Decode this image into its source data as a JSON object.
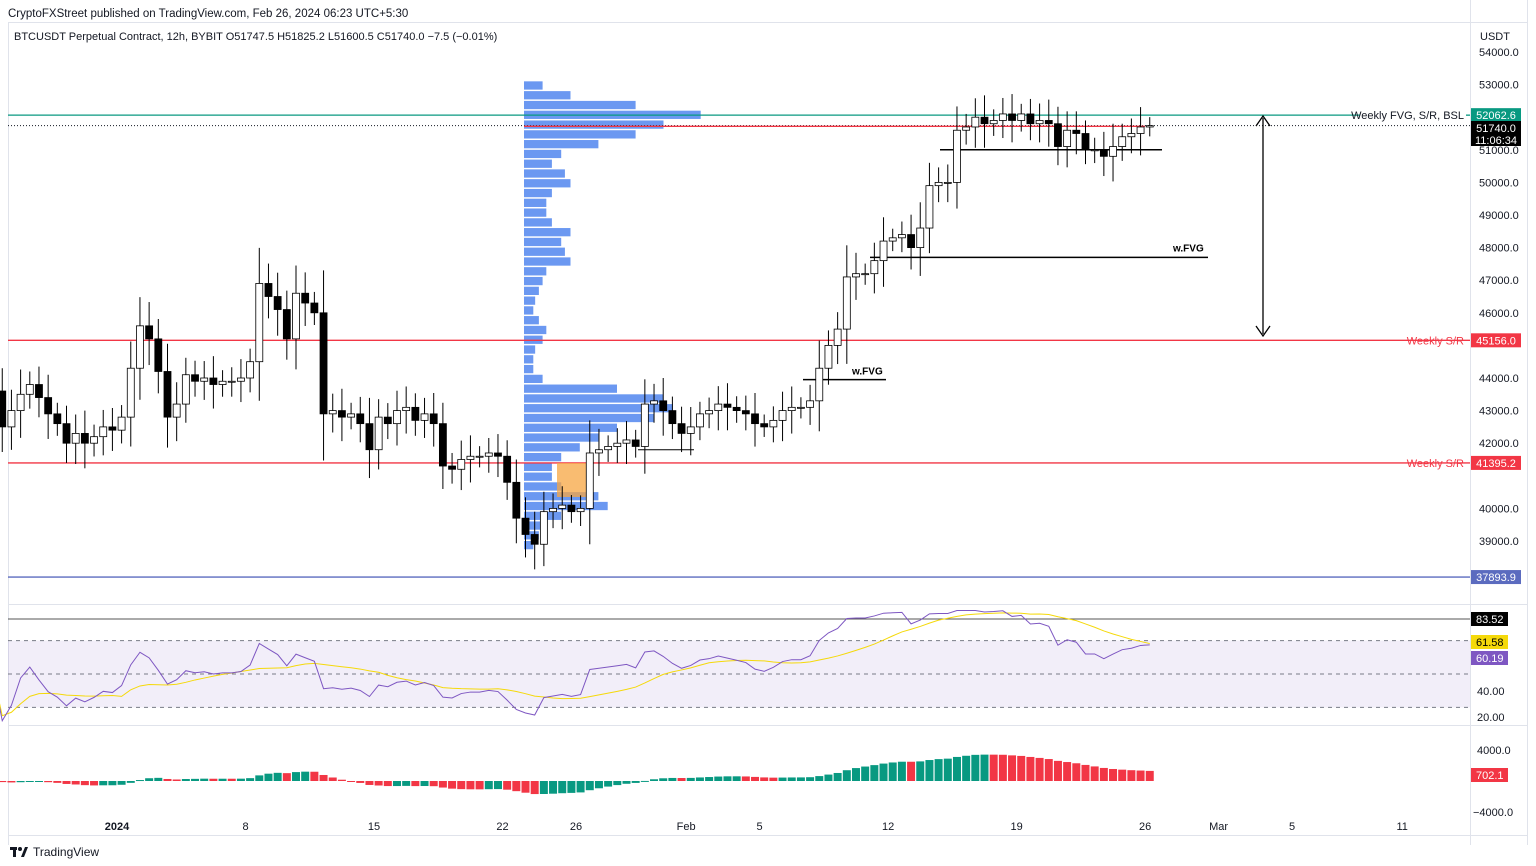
{
  "header": {
    "published": "CryptoFXStreet published on TradingView.com, Feb 26, 2024 06:23 UTC+5:30",
    "symbol_line": "BTCUSDT Perpetual Contract, 12h, BYBIT  O51747.5  H51825.2  L51600.5  C51740.0  −7.5 (−0.01%)"
  },
  "price_unit": "USDT",
  "footer": {
    "brand": "TradingView"
  },
  "chart_data": {
    "type": "candlestick",
    "interval": "12h",
    "first_day": "2023-12-25",
    "closes": [
      43.6,
      42.5,
      43.0,
      43.5,
      43.8,
      43.4,
      42.9,
      42.6,
      42.0,
      42.3,
      42.0,
      42.2,
      42.5,
      42.4,
      42.8,
      44.3,
      45.6,
      45.2,
      44.2,
      42.8,
      43.2,
      44.1,
      43.9,
      44.0,
      43.8,
      43.9,
      43.9,
      44.0,
      44.5,
      46.9,
      46.5,
      46.1,
      45.2,
      46.6,
      46.3,
      46.0,
      42.9,
      43.0,
      42.8,
      42.9,
      42.6,
      41.8,
      42.8,
      42.6,
      43.0,
      43.1,
      42.7,
      42.9,
      42.6,
      41.3,
      41.2,
      41.5,
      41.6,
      41.6,
      41.7,
      41.6,
      40.8,
      39.7,
      39.2,
      38.9,
      39.9,
      40.0,
      40.1,
      39.9,
      40.0,
      41.7,
      41.8,
      41.9,
      42.0,
      42.1,
      41.9,
      43.2,
      43.3,
      43.0,
      42.6,
      42.3,
      42.5,
      42.9,
      43.0,
      43.2,
      43.1,
      43.0,
      42.9,
      42.6,
      42.5,
      42.7,
      43.0,
      43.1,
      43.1,
      43.3,
      44.3,
      45.0,
      45.5,
      47.1,
      47.2,
      47.2,
      47.6,
      48.2,
      48.3,
      48.4,
      48.0,
      48.6,
      49.9,
      50.0,
      50.0,
      51.6,
      51.7,
      52.0,
      51.8,
      51.9,
      52.1,
      51.9,
      52.1,
      51.8,
      51.9,
      51.8,
      51.1,
      51.6,
      51.5,
      51.0,
      51.0,
      50.8,
      51.1,
      51.4,
      51.5,
      51.7,
      51.74
    ],
    "close_unit": "thousand USDT",
    "price_axis": {
      "min": 38500,
      "max": 54000,
      "ticks": [
        54000,
        53000,
        52000,
        51000,
        50000,
        49000,
        48000,
        47000,
        46000,
        45000,
        44000,
        43000,
        42000,
        41000,
        40000,
        39000
      ]
    },
    "x_ticks": [
      {
        "label": "2024",
        "day": 7
      },
      {
        "label": "8",
        "day": 14
      },
      {
        "label": "15",
        "day": 21
      },
      {
        "label": "22",
        "day": 28
      },
      {
        "label": "26",
        "day": 32
      },
      {
        "label": "Feb",
        "day": 38
      },
      {
        "label": "5",
        "day": 42
      },
      {
        "label": "12",
        "day": 49
      },
      {
        "label": "19",
        "day": 56
      },
      {
        "label": "26",
        "day": 63
      },
      {
        "label": "Mar",
        "day": 67
      },
      {
        "label": "5",
        "day": 71
      },
      {
        "label": "11",
        "day": 77
      }
    ],
    "levels": [
      {
        "label": "Weekly FVG, S/R, BSL",
        "price": "52062.6",
        "value": 52062.6,
        "color": "#089981"
      },
      {
        "label": "Weekly S/R",
        "price": "45156.0",
        "value": 45156.0,
        "color": "#f23645"
      },
      {
        "label": "Weekly S/R",
        "price": "41395.2",
        "value": 41395.2,
        "color": "#f23645"
      },
      {
        "label": "",
        "price": "37893.9",
        "value": 37893.9,
        "color": "#5b6bbf"
      }
    ],
    "current": {
      "price": "51740.0",
      "countdown": "11:06:34"
    },
    "annotations": [
      {
        "label": "w.FVG",
        "value": 47700
      },
      {
        "label": "w.FVG",
        "value": 43950
      }
    ],
    "volume_profile": {
      "top": 53100,
      "step": 300,
      "relative": [
        0.1,
        0.25,
        0.6,
        0.95,
        0.75,
        0.6,
        0.4,
        0.2,
        0.15,
        0.22,
        0.25,
        0.15,
        0.12,
        0.12,
        0.15,
        0.25,
        0.2,
        0.22,
        0.25,
        0.12,
        0.1,
        0.08,
        0.06,
        0.05,
        0.08,
        0.12,
        0.1,
        0.06,
        0.05,
        0.05,
        0.1,
        0.5,
        0.75,
        0.8,
        0.7,
        0.5,
        0.4,
        0.3,
        0.2,
        0.15,
        0.15,
        0.2,
        0.4,
        0.45,
        0.2,
        0.1,
        0.08,
        0.05
      ],
      "color": "#5b8def"
    },
    "rsi": {
      "labels": {
        "upper": "83.52",
        "ma": "61.58",
        "rsi": "60.19"
      },
      "ticks": [
        "40.00",
        "20.00"
      ],
      "band": [
        30,
        70
      ],
      "colors": {
        "rsi": "#7e57c2",
        "ma": "#f5d90a"
      }
    },
    "oscillator": {
      "ticks": [
        "4000.0",
        "−4000.0"
      ],
      "last": "702.1",
      "colors": {
        "up": "#089981",
        "down": "#f23645"
      }
    }
  }
}
